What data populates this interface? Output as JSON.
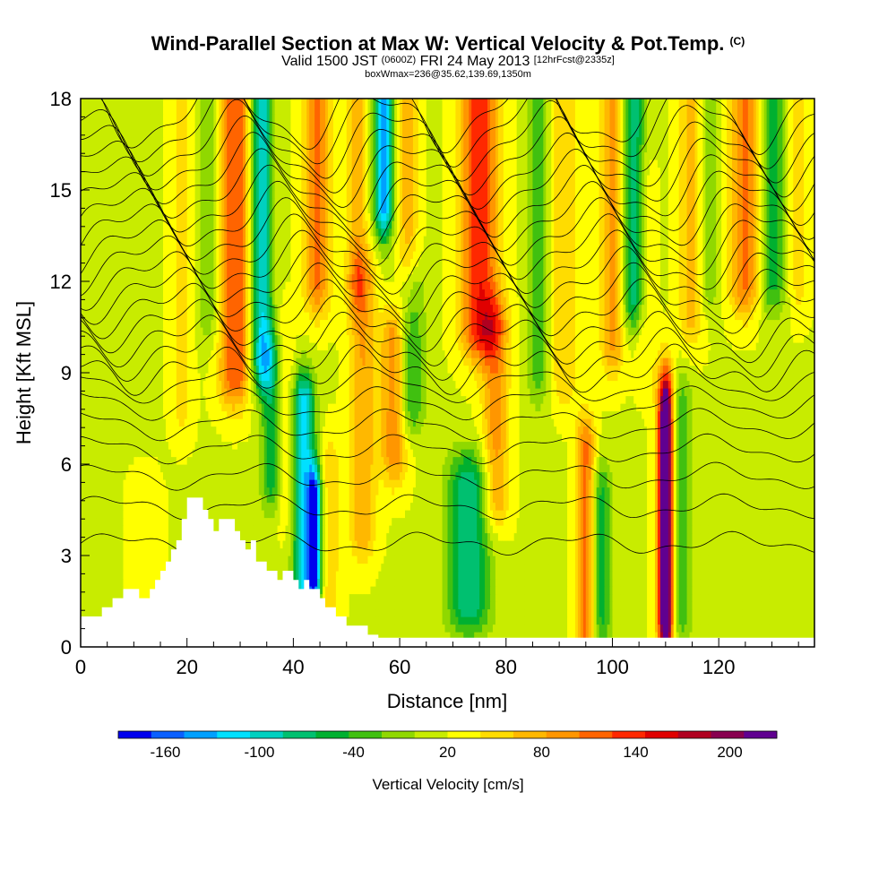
{
  "title": {
    "main": "Wind-Parallel Section at Max W: Vertical Velocity & Pot.Temp.",
    "main_mark": "(C)",
    "valid_prefix": "Valid 1500 JST",
    "valid_utc": "(0600Z)",
    "valid_date": "FRI 24 May 2013",
    "forecast": "[12hrFcst@2335z]",
    "box": "boxWmax=236@35.62,139.69,1350m"
  },
  "colors": {
    "bins": [
      "#0000ee",
      "#0b60ff",
      "#00a0ff",
      "#00e0ff",
      "#00d0c0",
      "#00c070",
      "#00b030",
      "#40c010",
      "#90d800",
      "#c8ec00",
      "#ffff00",
      "#ffdc00",
      "#ffb800",
      "#ff9600",
      "#ff6400",
      "#ff2800",
      "#e00000",
      "#b00020",
      "#880050",
      "#600090"
    ],
    "terrain": "#ffffff",
    "contour": "#000000"
  },
  "chart_data": {
    "type": "heatmap",
    "xlabel": "Distance [nm]",
    "ylabel": "Height [Kft MSL]",
    "xlim": [
      0,
      138
    ],
    "ylim": [
      0,
      18
    ],
    "x_ticks": [
      0,
      20,
      40,
      60,
      80,
      100,
      120
    ],
    "y_ticks": [
      0,
      3,
      6,
      9,
      12,
      15,
      18
    ],
    "colorbar": {
      "label": "Vertical Velocity [cm/s]",
      "tick_labels": [
        "-160",
        "-100",
        "-40",
        "20",
        "80",
        "140",
        "200"
      ],
      "tick_values": [
        -160,
        -100,
        -40,
        20,
        80,
        140,
        200
      ],
      "min": -190,
      "max": 230,
      "step": 20
    },
    "background_w": 8,
    "features": [
      {
        "x": 3,
        "w": -10,
        "width": 3,
        "y0": 0,
        "y1": 4
      },
      {
        "x": 12,
        "w": 30,
        "width": 3,
        "y0": 0.5,
        "y1": 4.5
      },
      {
        "x": 19,
        "w": 40,
        "width": 2,
        "y0": 8,
        "y1": 18
      },
      {
        "x": 24,
        "w": -30,
        "width": 2,
        "y0": 11,
        "y1": 18
      },
      {
        "x": 29,
        "w": 110,
        "width": 3,
        "y0": 9,
        "y1": 18
      },
      {
        "x": 34,
        "w": -110,
        "width": 2,
        "y0": 9.5,
        "y1": 18
      },
      {
        "x": 36,
        "w": -70,
        "width": 2,
        "y0": 5.5,
        "y1": 9.5
      },
      {
        "x": 38,
        "w": 40,
        "width": 2,
        "y0": 5,
        "y1": 10
      },
      {
        "x": 42,
        "w": -120,
        "width": 2,
        "y0": 1.8,
        "y1": 8
      },
      {
        "x": 44,
        "w": -165,
        "width": 1.2,
        "y0": 2.5,
        "y1": 4.8
      },
      {
        "x": 44.5,
        "w": 95,
        "width": 2.5,
        "y0": 12,
        "y1": 18
      },
      {
        "x": 47,
        "w": 40,
        "width": 2,
        "y0": 1.5,
        "y1": 6
      },
      {
        "x": 53,
        "w": 70,
        "width": 2.5,
        "y0": 4,
        "y1": 12
      },
      {
        "x": 52,
        "w": 60,
        "width": 2,
        "y0": 12,
        "y1": 18
      },
      {
        "x": 57,
        "w": -140,
        "width": 1.8,
        "y0": 14.5,
        "y1": 18
      },
      {
        "x": 59,
        "w": 90,
        "width": 2.5,
        "y0": 6.5,
        "y1": 10
      },
      {
        "x": 61.5,
        "w": 60,
        "width": 2,
        "y0": 12,
        "y1": 18
      },
      {
        "x": 62,
        "w": -60,
        "width": 2.5,
        "y0": 8,
        "y1": 11.5
      },
      {
        "x": 73,
        "w": -90,
        "width": 4,
        "y0": 1.5,
        "y1": 5.3
      },
      {
        "x": 75,
        "w": 125,
        "width": 3.5,
        "y0": 10.5,
        "y1": 18
      },
      {
        "x": 78,
        "w": 80,
        "width": 2.5,
        "y0": 5,
        "y1": 10.5
      },
      {
        "x": 86,
        "w": -40,
        "width": 2,
        "y0": 9,
        "y1": 18
      },
      {
        "x": 91,
        "w": 50,
        "width": 2.5,
        "y0": 9,
        "y1": 18
      },
      {
        "x": 95,
        "w": 95,
        "width": 1.8,
        "y0": 0.5,
        "y1": 6.5
      },
      {
        "x": 98,
        "w": -60,
        "width": 1.8,
        "y0": 1,
        "y1": 5
      },
      {
        "x": 100,
        "w": 75,
        "width": 2.2,
        "y0": 10,
        "y1": 18
      },
      {
        "x": 104,
        "w": -85,
        "width": 2,
        "y0": 11.5,
        "y1": 18
      },
      {
        "x": 106,
        "w": 30,
        "width": 2,
        "y0": 9.5,
        "y1": 15
      },
      {
        "x": 110,
        "w": 205,
        "width": 1.1,
        "y0": 1,
        "y1": 7.5
      },
      {
        "x": 110,
        "w": 90,
        "width": 1.8,
        "y0": 0.8,
        "y1": 8.5
      },
      {
        "x": 113,
        "w": -40,
        "width": 2,
        "y0": 1,
        "y1": 8
      },
      {
        "x": 115,
        "w": 60,
        "width": 2.5,
        "y0": 11,
        "y1": 18
      },
      {
        "x": 118,
        "w": -35,
        "width": 2,
        "y0": 12,
        "y1": 18
      },
      {
        "x": 125,
        "w": 95,
        "width": 3,
        "y0": 12,
        "y1": 18
      },
      {
        "x": 130,
        "w": -60,
        "width": 2.5,
        "y0": 12,
        "y1": 18
      },
      {
        "x": 135,
        "w": 40,
        "width": 2,
        "y0": 12,
        "y1": 18
      }
    ],
    "terrain_kft": [
      1,
      1,
      1,
      1,
      1.3,
      1.3,
      1.6,
      1.6,
      1.9,
      1.9,
      1.9,
      1.6,
      1.6,
      1.9,
      2.2,
      2.5,
      2.8,
      3.2,
      3.5,
      4.2,
      4.9,
      4.9,
      4.9,
      4.5,
      4.2,
      3.8,
      4.2,
      4.2,
      4.2,
      3.8,
      3.5,
      3.2,
      3.5,
      2.8,
      2.8,
      2.5,
      2.5,
      2.2,
      2.5,
      2.5,
      2.2,
      1.9,
      2.2,
      1.9,
      1.9,
      1.6,
      1.3,
      1.3,
      1,
      1,
      0.7,
      0.7,
      0.7,
      0.7,
      0.4,
      0.4,
      0.3,
      0.3,
      0.3,
      0.3,
      0.3,
      0.3,
      0.3,
      0.3,
      0.3,
      0.3,
      0.3,
      0.3,
      0.3,
      0.3,
      0.3,
      0.3,
      0.3,
      0.3,
      0.3,
      0.3,
      0.3,
      0.3,
      0.3,
      0.3,
      0.3,
      0.3,
      0.3,
      0.3,
      0.3,
      0.3,
      0.3,
      0.3,
      0.3,
      0.3,
      0.3,
      0.3,
      0.3,
      0.3,
      0.3,
      0.3,
      0.3,
      0.3,
      0.3,
      0.3,
      0.3,
      0.3,
      0.3,
      0.3,
      0.3,
      0.3,
      0.3,
      0.3,
      0.3,
      0.3,
      0.3,
      0.3,
      0.3,
      0.3,
      0.3,
      0.3,
      0.3,
      0.3,
      0.3,
      0.3,
      0.3,
      0.3,
      0.3,
      0.3,
      0.3,
      0.3,
      0.3,
      0.3,
      0.3,
      0.3,
      0.3,
      0.3,
      0.3,
      0.3,
      0.3,
      0.3,
      0.3,
      0.3,
      0.3
    ],
    "theta_contours_kft": [
      3.4,
      4.6,
      5.6,
      6.5,
      7.3,
      8.0,
      8.6,
      9.1,
      9.6,
      10.1,
      10.6,
      11.1,
      11.6,
      12.1,
      12.6,
      13.1,
      13.6,
      14.1,
      14.6,
      15.1,
      15.6,
      16.1,
      16.6,
      17.1,
      17.6
    ]
  }
}
